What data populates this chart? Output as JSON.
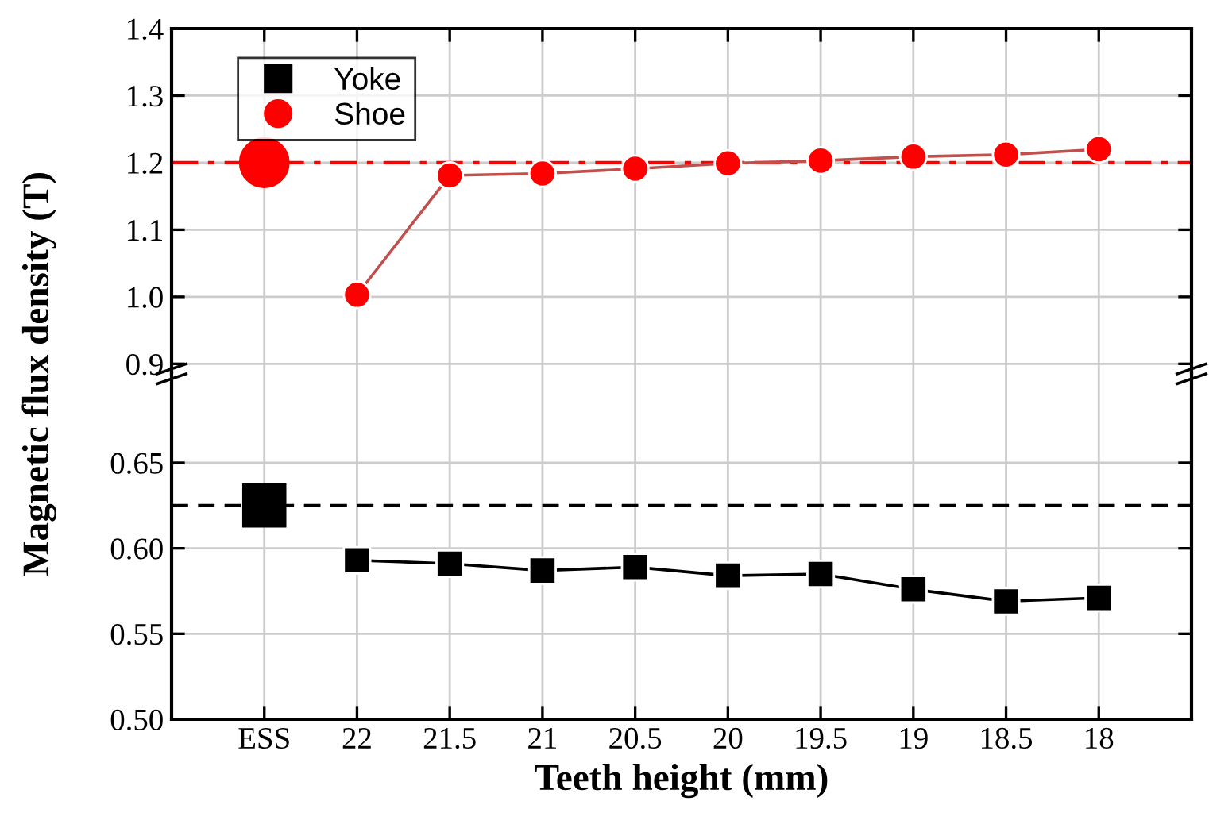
{
  "chart_data": [
    {
      "type": "line",
      "ylabel": "Magnetic flux density (T)",
      "categories": [
        null,
        null,
        null,
        null,
        null,
        null,
        null,
        null,
        null,
        null
      ],
      "series": [
        {
          "type": "scatter",
          "color": "#ff0000",
          "values": [
            1.2,
            null,
            null,
            null,
            null,
            null,
            null,
            null,
            null,
            null
          ]
        },
        {
          "name": "Shoe",
          "color": "#ff0000",
          "values": [
            null,
            1.003,
            1.181,
            1.184,
            1.191,
            1.199,
            1.203,
            1.209,
            1.212,
            1.22
          ]
        }
      ],
      "ylim": [
        0.885,
        1.4
      ],
      "yticks": [
        {
          "value": 0.9,
          "label": "0.9"
        },
        {
          "value": 1.0,
          "label": "1.0"
        },
        {
          "value": 1.1,
          "label": "1.1"
        },
        {
          "value": 1.2,
          "label": "1.2"
        },
        {
          "value": 1.3,
          "label": "1.3"
        },
        {
          "value": 1.4,
          "label": "1.4"
        }
      ],
      "ref_lines": [
        {
          "axis": "y",
          "value": 1.2,
          "color": "#ff0000",
          "line_style": "dashdot"
        }
      ],
      "marker": "circle",
      "grid": true,
      "legend": "top left",
      "tick_labels": "y"
    },
    {
      "type": "line",
      "xlabel": "Teeth height (mm)",
      "categories": [
        "ESS",
        "22",
        "21.5",
        "21",
        "20.5",
        "20",
        "19.5",
        "19",
        "18.5",
        "18"
      ],
      "series": [
        {
          "type": "scatter",
          "color": "#000000",
          "values": [
            0.625,
            null,
            null,
            null,
            null,
            null,
            null,
            null,
            null,
            null
          ]
        },
        {
          "name": "Yoke",
          "color": "#000000",
          "values": [
            null,
            0.593,
            0.591,
            0.587,
            0.589,
            0.584,
            0.585,
            0.576,
            0.569,
            0.571
          ]
        }
      ],
      "ylim": [
        0.5,
        0.702
      ],
      "yticks": [
        {
          "value": 0.5,
          "label": "0.50"
        },
        {
          "value": 0.55,
          "label": "0.55"
        },
        {
          "value": 0.6,
          "label": "0.60"
        },
        {
          "value": 0.65,
          "label": "0.65"
        }
      ],
      "ref_lines": [
        {
          "axis": "y",
          "value": 0.625,
          "color": "#000000",
          "line_style": "dashed"
        }
      ],
      "marker": "square",
      "grid": true
    }
  ]
}
